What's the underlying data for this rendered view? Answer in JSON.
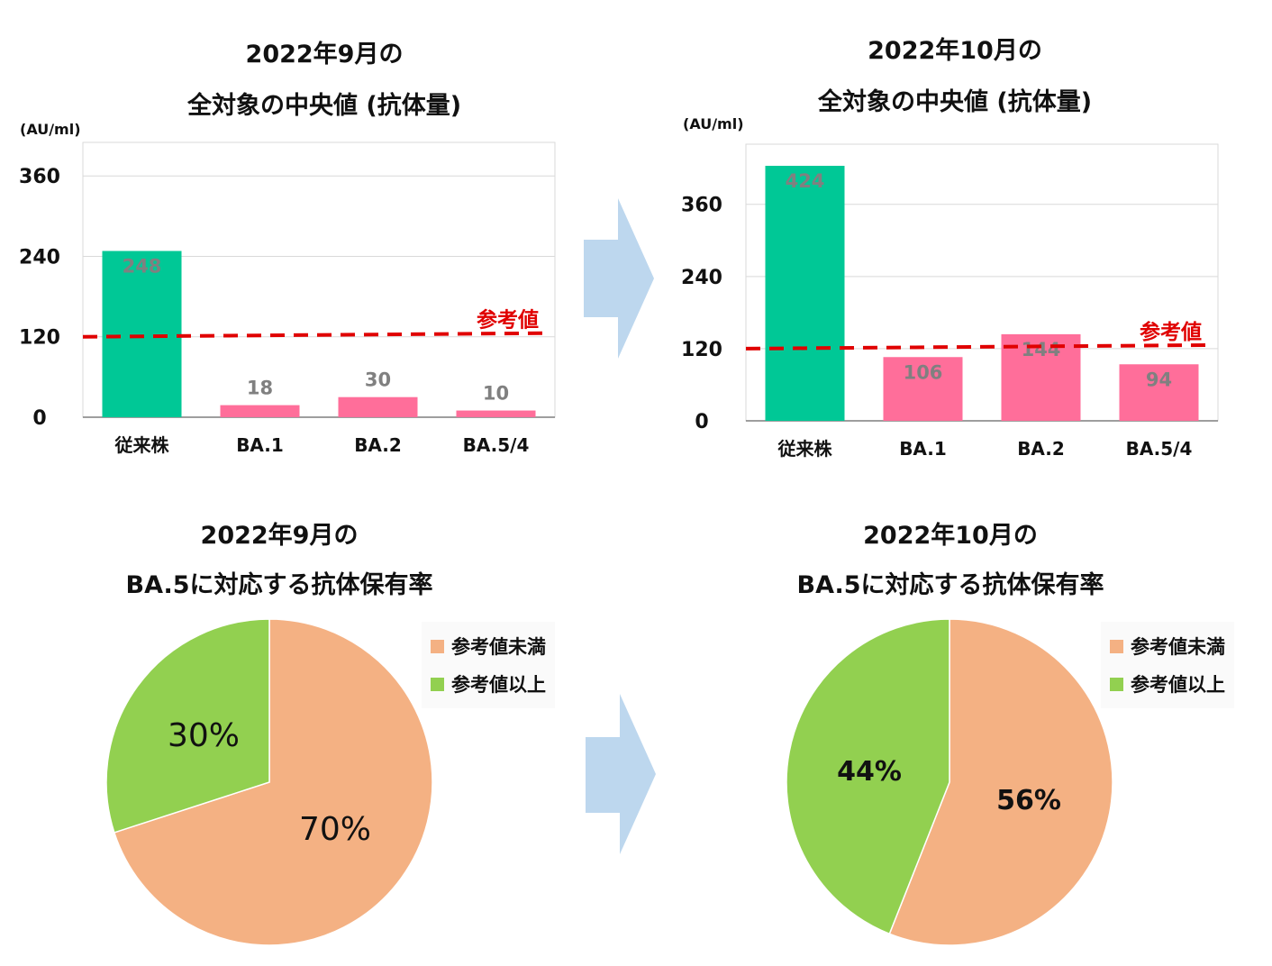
{
  "colors": {
    "conventional": "#00C896",
    "omicron": "#FF6E9A",
    "reference_line": "#E00000",
    "below": "#F4B183",
    "above": "#92D050",
    "arrow": "#BDD7EE",
    "bar_label_on_green": "#808080",
    "bar_label": "#7F7F7F"
  },
  "bar_charts": [
    {
      "title_line1": "2022年9月の",
      "title_line2": "全対象の中央値 (抗体量)",
      "unit": "(AU/ml)"
    },
    {
      "title_line1": "2022年10月の",
      "title_line2": "全対象の中央値 (抗体量)",
      "unit": "(AU/ml)"
    }
  ],
  "pie_charts": [
    {
      "title_line1": "2022年9月の",
      "title_line2": "BA.5に対応する抗体保有率",
      "legend": [
        "参考値未満",
        "参考値以上"
      ]
    },
    {
      "title_line1": "2022年10月の",
      "title_line2": "BA.5に対応する抗体保有率",
      "legend": [
        "参考値未満",
        "参考値以上"
      ]
    }
  ],
  "chart_data": [
    {
      "type": "bar",
      "title": "2022年9月の 全対象の中央値 (抗体量)",
      "ylabel": "(AU/ml)",
      "categories": [
        "従来株",
        "BA.1",
        "BA.2",
        "BA.5/4"
      ],
      "values": [
        248,
        18,
        30,
        10
      ],
      "value_labels": [
        "248",
        "18",
        "30",
        "10"
      ],
      "yticks": [
        "0",
        "120",
        "240",
        "360"
      ],
      "ylim": [
        0,
        410
      ],
      "reference_value": 120,
      "reference_label": "参考値",
      "grid": true
    },
    {
      "type": "bar",
      "title": "2022年10月の 全対象の中央値 (抗体量)",
      "ylabel": "(AU/ml)",
      "categories": [
        "従来株",
        "BA.1",
        "BA.2",
        "BA.5/4"
      ],
      "values": [
        424,
        106,
        144,
        94
      ],
      "value_labels": [
        "424",
        "106",
        "144",
        "94"
      ],
      "yticks": [
        "0",
        "120",
        "240",
        "360"
      ],
      "ylim": [
        0,
        460
      ],
      "reference_value": 120,
      "reference_label": "参考値",
      "grid": true
    },
    {
      "type": "pie",
      "title": "2022年9月の BA.5に対応する抗体保有率",
      "labels": [
        "参考値未満",
        "参考値以上"
      ],
      "values": [
        70,
        30
      ],
      "value_labels": [
        "70%",
        "30%"
      ]
    },
    {
      "type": "pie",
      "title": "2022年10月の BA.5に対応する抗体保有率",
      "labels": [
        "参考値未満",
        "参考値以上"
      ],
      "values": [
        56,
        44
      ],
      "value_labels": [
        "56%",
        "44%"
      ]
    }
  ]
}
